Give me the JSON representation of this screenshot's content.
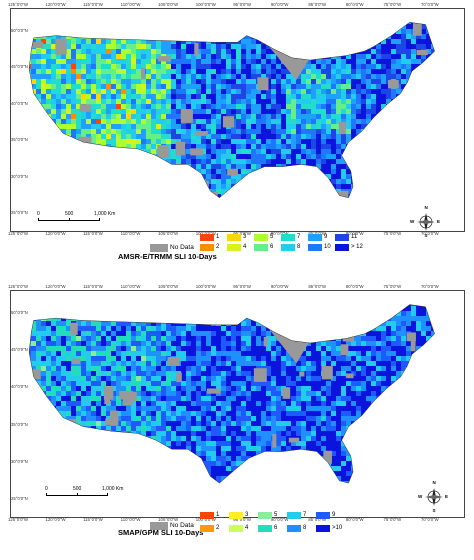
{
  "maps": [
    {
      "legend_title": "AMSR-E/TRMM SLI 10-Days",
      "no_data_label": "No Data",
      "no_data_color": "#999999",
      "classes": [
        {
          "label": "1",
          "color": "#ff4500"
        },
        {
          "label": "2",
          "color": "#ff8c00"
        },
        {
          "label": "3",
          "color": "#ffd700"
        },
        {
          "label": "4",
          "color": "#d9f21a"
        },
        {
          "label": "5",
          "color": "#adff2f"
        },
        {
          "label": "6",
          "color": "#66ee88"
        },
        {
          "label": "7",
          "color": "#22ddcc"
        },
        {
          "label": "8",
          "color": "#22ccee"
        },
        {
          "label": "9",
          "color": "#1ea0ff"
        },
        {
          "label": "10",
          "color": "#1e78ff"
        },
        {
          "label": "11",
          "color": "#1e46e6"
        },
        {
          "label": "> 12",
          "color": "#0a14dc"
        }
      ]
    },
    {
      "legend_title": "SMAP/GPM SLI  10-Days",
      "no_data_label": "No Data",
      "no_data_color": "#999999",
      "classes": [
        {
          "label": "1",
          "color": "#ff4500"
        },
        {
          "label": "2",
          "color": "#ff9900"
        },
        {
          "label": "3",
          "color": "#ffee22"
        },
        {
          "label": "4",
          "color": "#ccff55"
        },
        {
          "label": "5",
          "color": "#88ee99"
        },
        {
          "label": "6",
          "color": "#22ddbb"
        },
        {
          "label": "7",
          "color": "#22ccee"
        },
        {
          "label": "8",
          "color": "#1e90ff"
        },
        {
          "label": "9",
          "color": "#1e5aff"
        },
        {
          "label": ">10",
          "color": "#0a14dc"
        }
      ]
    }
  ],
  "axes": {
    "lon_ticks": [
      "125°0'0\"W",
      "120°0'0\"W",
      "115°0'0\"W",
      "110°0'0\"W",
      "105°0'0\"W",
      "100°0'0\"W",
      "95°0'0\"W",
      "90°0'0\"W",
      "85°0'0\"W",
      "80°0'0\"W",
      "75°0'0\"W",
      "70°0'0\"W"
    ],
    "lat_ticks": [
      "50°0'0\"N",
      "45°0'0\"N",
      "40°0'0\"N",
      "35°0'0\"N",
      "30°0'0\"N",
      "25°0'0\"N"
    ]
  },
  "scale": {
    "labels": [
      "0",
      "500",
      "1,000 Km"
    ]
  },
  "north_arrow": {
    "letters": [
      "N",
      "E",
      "S",
      "W"
    ],
    "icon": "compass-rose-icon"
  },
  "map_colors": {
    "land_base": "#1e64f0",
    "water": "#ffffff"
  }
}
